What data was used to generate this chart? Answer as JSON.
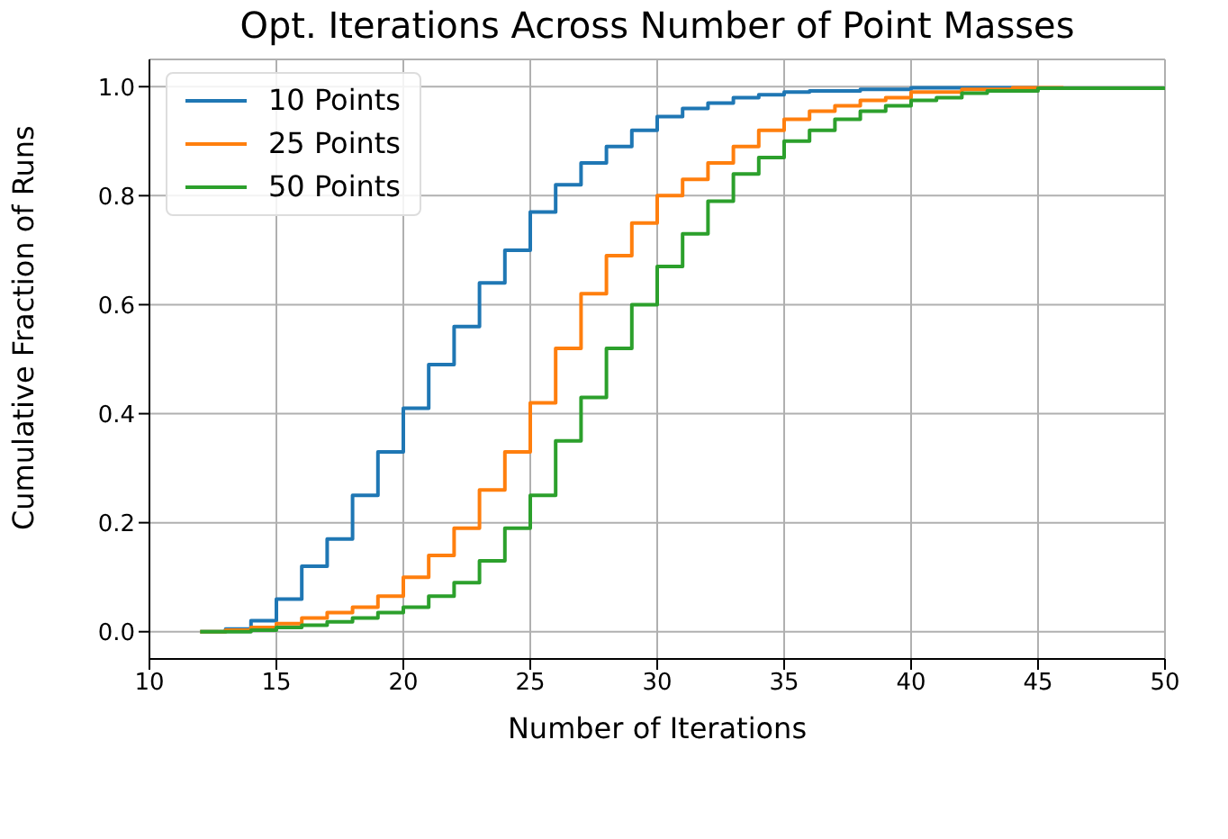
{
  "chart_data": {
    "type": "step",
    "title": "Opt. Iterations Across Number of Point Masses",
    "xlabel": "Number of Iterations",
    "ylabel": "Cumulative Fraction of Runs",
    "xlim": [
      10,
      50
    ],
    "xticks": [
      10,
      15,
      20,
      25,
      30,
      35,
      40,
      45,
      50
    ],
    "ylim": [
      -0.05,
      1.05
    ],
    "yticks": [
      {
        "value": 0,
        "label": "0.0"
      },
      {
        "value": 0.2,
        "label": "0.2"
      },
      {
        "value": 0.4,
        "label": "0.4"
      },
      {
        "value": 0.6,
        "label": "0.6"
      },
      {
        "value": 0.8,
        "label": "0.8"
      },
      {
        "value": 1,
        "label": "1.0"
      }
    ],
    "grid": true,
    "legend": "top left",
    "line_style": "solid",
    "marker": "none",
    "series": [
      {
        "name": "10 Points",
        "color": "#1f77b4",
        "x": [
          12,
          13,
          14,
          15,
          16,
          17,
          18,
          19,
          20,
          21,
          22,
          23,
          24,
          25,
          26,
          27,
          28,
          29,
          30,
          31,
          32,
          33,
          34,
          35,
          36,
          38,
          40,
          45
        ],
        "values": [
          0,
          0.005,
          0.02,
          0.06,
          0.12,
          0.17,
          0.25,
          0.33,
          0.41,
          0.49,
          0.56,
          0.64,
          0.7,
          0.77,
          0.82,
          0.86,
          0.89,
          0.92,
          0.945,
          0.96,
          0.97,
          0.98,
          0.985,
          0.99,
          0.992,
          0.995,
          0.998,
          1
        ]
      },
      {
        "name": "25 Points",
        "color": "#ff7f0e",
        "x": [
          12,
          13,
          14,
          15,
          16,
          17,
          18,
          19,
          20,
          21,
          22,
          23,
          24,
          25,
          26,
          27,
          28,
          29,
          30,
          31,
          32,
          33,
          34,
          35,
          36,
          37,
          38,
          39,
          40,
          42,
          44,
          46
        ],
        "values": [
          0,
          0.003,
          0.008,
          0.015,
          0.025,
          0.035,
          0.045,
          0.065,
          0.1,
          0.14,
          0.19,
          0.26,
          0.33,
          0.42,
          0.52,
          0.62,
          0.69,
          0.75,
          0.8,
          0.83,
          0.86,
          0.89,
          0.92,
          0.94,
          0.955,
          0.965,
          0.975,
          0.98,
          0.99,
          0.995,
          0.998,
          1
        ]
      },
      {
        "name": "50 Points",
        "color": "#2ca02c",
        "x": [
          12,
          14,
          15,
          16,
          17,
          18,
          19,
          20,
          21,
          22,
          23,
          24,
          25,
          26,
          27,
          28,
          29,
          30,
          31,
          32,
          33,
          34,
          35,
          36,
          37,
          38,
          39,
          40,
          41,
          42,
          43,
          45,
          50
        ],
        "values": [
          0,
          0.003,
          0.008,
          0.012,
          0.018,
          0.025,
          0.035,
          0.045,
          0.065,
          0.09,
          0.13,
          0.19,
          0.25,
          0.35,
          0.43,
          0.52,
          0.6,
          0.67,
          0.73,
          0.79,
          0.84,
          0.87,
          0.9,
          0.92,
          0.94,
          0.955,
          0.965,
          0.975,
          0.98,
          0.988,
          0.992,
          0.997,
          1
        ]
      }
    ]
  }
}
